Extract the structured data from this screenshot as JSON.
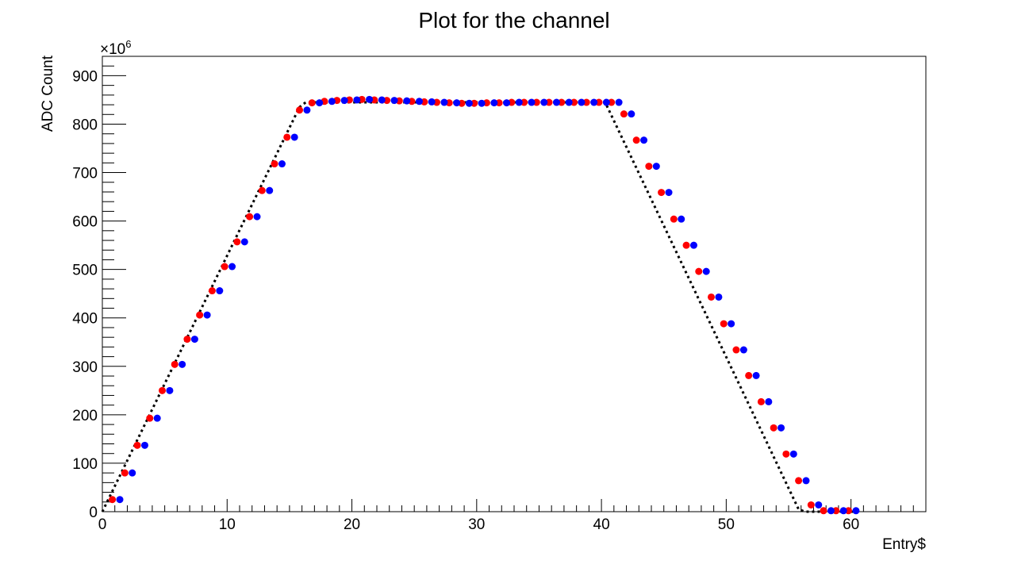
{
  "chart_data": {
    "type": "scatter",
    "title": "Plot for the channel",
    "xlabel": "Entry$",
    "ylabel": "ADC Count",
    "y_exponent_label": "×10",
    "y_exponent_power": "6",
    "xlim": [
      0,
      66
    ],
    "ylim": [
      0,
      940
    ],
    "x_ticks": [
      0,
      10,
      20,
      30,
      40,
      50,
      60
    ],
    "y_ticks": [
      0,
      100,
      200,
      300,
      400,
      500,
      600,
      700,
      800,
      900
    ],
    "x_minor_step": 1,
    "y_minor_step": 20,
    "grid": false,
    "legend": "none",
    "colors": {
      "series_a": "#ff0000",
      "series_b": "#0000ff",
      "fit": "#000000"
    },
    "series": [
      {
        "style": "markers",
        "color": "#ff0000",
        "x": [
          0.8,
          1.8,
          2.8,
          3.8,
          4.8,
          5.8,
          6.8,
          7.8,
          8.8,
          9.8,
          10.8,
          11.8,
          12.8,
          13.8,
          14.8,
          15.8,
          16.8,
          17.8,
          18.8,
          19.8,
          20.8,
          21.8,
          22.8,
          23.8,
          24.8,
          25.8,
          26.8,
          27.8,
          28.8,
          29.8,
          30.8,
          31.8,
          32.8,
          33.8,
          34.8,
          35.8,
          36.8,
          37.8,
          38.8,
          39.8,
          40.8,
          41.8,
          42.8,
          43.8,
          44.8,
          45.8,
          46.8,
          47.8,
          48.8,
          49.8,
          50.8,
          51.8,
          52.8,
          53.8,
          54.8,
          55.8,
          56.8,
          57.8,
          58.8,
          59.8
        ],
        "values": [
          25,
          80,
          137,
          193,
          250,
          304,
          356,
          406,
          456,
          506,
          557,
          609,
          663,
          718,
          773,
          829,
          844,
          847,
          849,
          850,
          851,
          850,
          849,
          848,
          847,
          846,
          845,
          844,
          843,
          843,
          844,
          844,
          845,
          845,
          845,
          845,
          845,
          845,
          845,
          845,
          845,
          821,
          767,
          713,
          659,
          604,
          550,
          496,
          443,
          388,
          334,
          281,
          227,
          173,
          119,
          64,
          14,
          2,
          2,
          2
        ]
      },
      {
        "style": "markers",
        "color": "#0000ff",
        "x": [
          1.4,
          2.4,
          3.4,
          4.4,
          5.4,
          6.4,
          7.4,
          8.4,
          9.4,
          10.4,
          11.4,
          12.4,
          13.4,
          14.4,
          15.4,
          16.4,
          17.4,
          18.4,
          19.4,
          20.4,
          21.4,
          22.4,
          23.4,
          24.4,
          25.4,
          26.4,
          27.4,
          28.4,
          29.4,
          30.4,
          31.4,
          32.4,
          33.4,
          34.4,
          35.4,
          36.4,
          37.4,
          38.4,
          39.4,
          40.4,
          41.4,
          42.4,
          43.4,
          44.4,
          45.4,
          46.4,
          47.4,
          48.4,
          49.4,
          50.4,
          51.4,
          52.4,
          53.4,
          54.4,
          55.4,
          56.4,
          57.4,
          58.4,
          59.4,
          60.4
        ],
        "values": [
          25,
          80,
          137,
          193,
          250,
          304,
          356,
          406,
          456,
          506,
          557,
          609,
          663,
          718,
          773,
          829,
          844,
          847,
          849,
          850,
          851,
          850,
          849,
          848,
          847,
          846,
          845,
          844,
          843,
          843,
          844,
          844,
          845,
          845,
          845,
          845,
          845,
          845,
          845,
          845,
          845,
          821,
          767,
          713,
          659,
          604,
          550,
          496,
          443,
          388,
          334,
          281,
          227,
          173,
          119,
          64,
          14,
          2,
          2,
          2
        ]
      },
      {
        "style": "dotted-line",
        "color": "#000000",
        "x": [
          0,
          15.8,
          16.3,
          40.3,
          55.8,
          56.3,
          60.5
        ],
        "values": [
          0,
          835,
          845,
          845,
          5,
          0,
          0
        ]
      }
    ]
  }
}
